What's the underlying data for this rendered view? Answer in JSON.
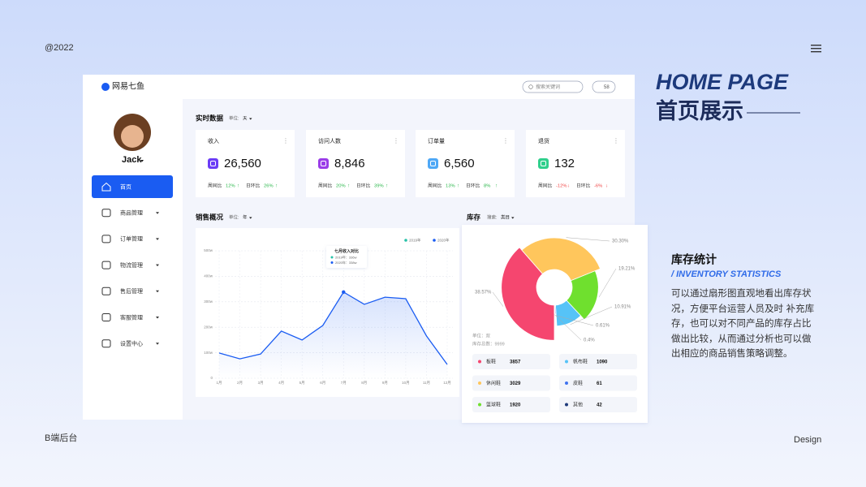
{
  "page": {
    "year": "@2022",
    "footer_left": "B端后台",
    "footer_right": "Design"
  },
  "showcase": {
    "title_en": "HOME PAGE",
    "title_cn": "首页展示",
    "section_title": "库存统计",
    "section_subtitle": "/ INVENTORY STATISTICS",
    "description": "可以通过扇形图直观地看出库存状况，方便平台运营人员及时 补充库存，也可以对不同产品的库存占比做出比较，从而通过分析也可以做出相应的商品销售策略调整。"
  },
  "app": {
    "logo": "网易七鱼",
    "search_placeholder": "搜索关键词",
    "badge": "58",
    "user": "Jack",
    "menu": [
      "首页",
      "商品管理",
      "订单管理",
      "物流管理",
      "售后管理",
      "客服管理",
      "设置中心"
    ]
  },
  "realtime": {
    "title": "实时数据",
    "unit_label": "单位:",
    "unit": "天",
    "cards": [
      {
        "title": "收入",
        "value": "26,560",
        "yoy_label": "周同比",
        "yoy": "12%",
        "yoy_trend": "↑",
        "mom_label": "日环比",
        "mom": "26%",
        "mom_trend": "↑",
        "color": "#6b3cf6"
      },
      {
        "title": "访问人数",
        "value": "8,846",
        "yoy_label": "周同比",
        "yoy": "20%",
        "yoy_trend": "↑",
        "mom_label": "日环比",
        "mom": "39%",
        "mom_trend": "↑",
        "color": "#9a3de8"
      },
      {
        "title": "订单量",
        "value": "6,560",
        "yoy_label": "周同比",
        "yoy": "13%",
        "yoy_trend": "↑",
        "mom_label": "日环比",
        "mom": "8%",
        "mom_trend": "↑",
        "color": "#4ea8f6"
      },
      {
        "title": "退货",
        "value": "132",
        "yoy_label": "周同比",
        "yoy": "-12%",
        "yoy_trend": "↓",
        "mom_label": "日环比",
        "mom": "-6%",
        "mom_trend": "↓",
        "color": "#2fcf8c"
      }
    ]
  },
  "sales": {
    "title": "销售概况",
    "unit_label": "单位:",
    "unit": "年"
  },
  "sales_chart": {
    "type": "line",
    "categories": [
      "1月",
      "2月",
      "3月",
      "4月",
      "5月",
      "6月",
      "7月",
      "8月",
      "9月",
      "10月",
      "11月",
      "12月"
    ],
    "legend": [
      {
        "name": "2019年",
        "color": "#27c2a8"
      },
      {
        "name": "2020年",
        "color": "#1a5cf2"
      }
    ],
    "series": [
      {
        "name": "2020年",
        "color": "#1a5cf2",
        "values": [
          99,
          76,
          95,
          185,
          150,
          207,
          338,
          290,
          318,
          312,
          166,
          54
        ]
      }
    ],
    "ylim": [
      0,
      500
    ],
    "yticks": [
      0,
      {
        "value": 100,
        "label": "100w"
      },
      {
        "value": 200,
        "label": "200w"
      },
      {
        "value": 300,
        "label": "300w"
      },
      {
        "value": 400,
        "label": "400w"
      },
      {
        "value": 500,
        "label": "500w"
      }
    ],
    "grid": true,
    "tooltip": {
      "title": "七月收入对比",
      "rows": [
        "2019年：336w",
        "2020年：338w"
      ]
    }
  },
  "inventory": {
    "title": "库存",
    "filter_label": "搜索:",
    "filter": "类目",
    "unit_text": "单位：双",
    "total_text": "库存总数：9999"
  },
  "inventory_chart": {
    "type": "pie",
    "categories": [
      "板鞋",
      "休闲鞋",
      "篮球鞋",
      "帆布鞋",
      "皮鞋",
      "其他"
    ],
    "values": [
      3857,
      3029,
      1920,
      1090,
      61,
      42
    ],
    "percents": [
      38.57,
      30.3,
      19.21,
      10.91,
      0.61,
      0.4
    ],
    "percent_labels": [
      "38.57%",
      "30.30%",
      "19.21%",
      "10.91%",
      "0.61%",
      "0.4%"
    ],
    "colors": [
      "#f5466f",
      "#ffc65c",
      "#6fe02e",
      "#56c3f7",
      "#3f73ef",
      "#1e3a7a"
    ]
  }
}
